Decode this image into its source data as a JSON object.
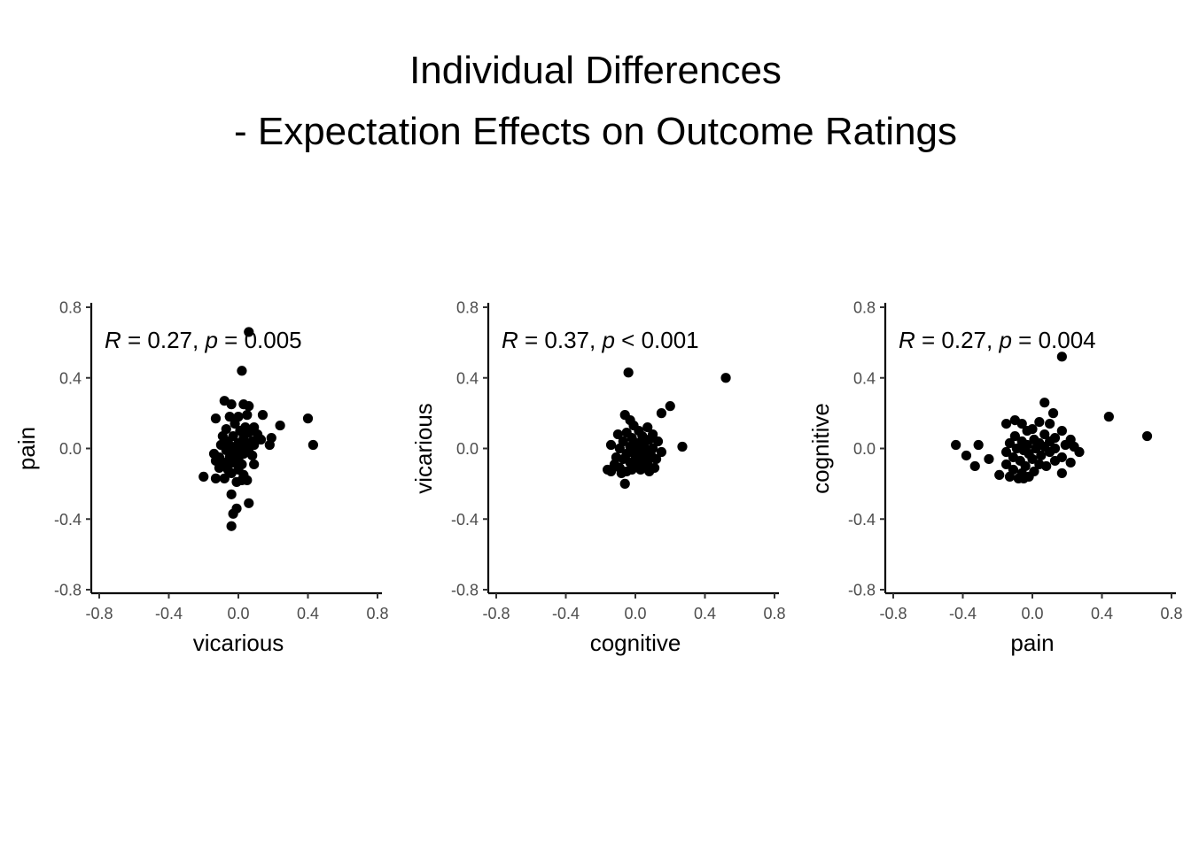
{
  "title": {
    "line1": "Individual Differences",
    "line2": "- Expectation Effects on Outcome Ratings"
  },
  "point_color": "#000000",
  "chart_data": [
    {
      "type": "scatter",
      "xlabel": "vicarious",
      "ylabel": "pain",
      "xlim": [
        -0.8,
        0.8
      ],
      "ylim": [
        -0.8,
        0.8
      ],
      "xticks": [
        "-0.8",
        "-0.4",
        "0.0",
        "0.4",
        "0.8"
      ],
      "yticks": [
        "-0.8",
        "-0.4",
        "0.0",
        "0.4",
        "0.8"
      ],
      "annotation": {
        "r_label": "R",
        "r_text": " = 0.27, ",
        "p_label": "p",
        "p_text": " = 0.005"
      },
      "points": [
        [
          0.06,
          0.66
        ],
        [
          0.02,
          0.44
        ],
        [
          -0.08,
          0.27
        ],
        [
          -0.04,
          0.25
        ],
        [
          0.03,
          0.25
        ],
        [
          0.06,
          0.24
        ],
        [
          -0.13,
          0.17
        ],
        [
          -0.05,
          0.18
        ],
        [
          0.0,
          0.18
        ],
        [
          0.05,
          0.19
        ],
        [
          0.14,
          0.19
        ],
        [
          0.24,
          0.13
        ],
        [
          0.4,
          0.17
        ],
        [
          0.43,
          0.02
        ],
        [
          -0.02,
          0.14
        ],
        [
          0.04,
          0.12
        ],
        [
          0.09,
          0.12
        ],
        [
          -0.07,
          0.11
        ],
        [
          0.01,
          0.1
        ],
        [
          0.06,
          0.09
        ],
        [
          0.11,
          0.08
        ],
        [
          -0.09,
          0.07
        ],
        [
          -0.03,
          0.07
        ],
        [
          0.03,
          0.06
        ],
        [
          0.19,
          0.06
        ],
        [
          0.13,
          0.05
        ],
        [
          0.08,
          0.04
        ],
        [
          -0.06,
          0.04
        ],
        [
          0.0,
          0.03
        ],
        [
          -0.1,
          0.02
        ],
        [
          0.04,
          0.02
        ],
        [
          0.09,
          0.02
        ],
        [
          0.18,
          0.02
        ],
        [
          -0.04,
          0.01
        ],
        [
          0.02,
          0.0
        ],
        [
          -0.07,
          -0.01
        ],
        [
          0.06,
          -0.02
        ],
        [
          -0.14,
          -0.03
        ],
        [
          -0.02,
          -0.02
        ],
        [
          0.03,
          -0.03
        ],
        [
          -0.11,
          -0.05
        ],
        [
          -0.05,
          -0.05
        ],
        [
          0.0,
          -0.06
        ],
        [
          0.08,
          -0.04
        ],
        [
          -0.13,
          -0.07
        ],
        [
          -0.08,
          -0.08
        ],
        [
          -0.03,
          -0.08
        ],
        [
          0.02,
          -0.09
        ],
        [
          0.09,
          -0.09
        ],
        [
          -0.11,
          -0.11
        ],
        [
          -0.06,
          -0.12
        ],
        [
          0.0,
          -0.12
        ],
        [
          -0.04,
          -0.14
        ],
        [
          0.03,
          -0.15
        ],
        [
          -0.2,
          -0.16
        ],
        [
          -0.13,
          -0.17
        ],
        [
          -0.08,
          -0.17
        ],
        [
          0.02,
          -0.18
        ],
        [
          -0.01,
          -0.19
        ],
        [
          -0.04,
          -0.26
        ],
        [
          0.06,
          -0.31
        ],
        [
          -0.01,
          -0.34
        ],
        [
          -0.03,
          -0.37
        ],
        [
          -0.04,
          -0.44
        ],
        [
          0.05,
          -0.18
        ]
      ]
    },
    {
      "type": "scatter",
      "xlabel": "cognitive",
      "ylabel": "vicarious",
      "xlim": [
        -0.8,
        0.8
      ],
      "ylim": [
        -0.8,
        0.8
      ],
      "xticks": [
        "-0.8",
        "-0.4",
        "0.0",
        "0.4",
        "0.8"
      ],
      "yticks": [
        "-0.8",
        "-0.4",
        "0.0",
        "0.4",
        "0.8"
      ],
      "annotation": {
        "r_label": "R",
        "r_text": " = 0.37, ",
        "p_label": "p",
        "p_text": " < 0.001"
      },
      "points": [
        [
          -0.04,
          0.43
        ],
        [
          0.52,
          0.4
        ],
        [
          0.2,
          0.24
        ],
        [
          0.15,
          0.2
        ],
        [
          -0.06,
          0.19
        ],
        [
          -0.03,
          0.16
        ],
        [
          0.07,
          0.12
        ],
        [
          0.02,
          0.1
        ],
        [
          -0.05,
          0.09
        ],
        [
          0.1,
          0.08
        ],
        [
          -0.1,
          0.08
        ],
        [
          0.04,
          0.07
        ],
        [
          -0.02,
          0.06
        ],
        [
          0.08,
          0.05
        ],
        [
          0.13,
          0.04
        ],
        [
          -0.07,
          0.04
        ],
        [
          0.01,
          0.03
        ],
        [
          0.05,
          0.02
        ],
        [
          -0.14,
          0.02
        ],
        [
          0.27,
          0.01
        ],
        [
          -0.03,
          0.01
        ],
        [
          0.1,
          0.0
        ],
        [
          0.03,
          0.0
        ],
        [
          -0.09,
          0.0
        ],
        [
          0.06,
          -0.01
        ],
        [
          -0.01,
          -0.02
        ],
        [
          0.15,
          -0.02
        ],
        [
          -0.05,
          -0.03
        ],
        [
          0.0,
          -0.04
        ],
        [
          0.09,
          -0.04
        ],
        [
          -0.11,
          -0.05
        ],
        [
          0.04,
          -0.05
        ],
        [
          -0.07,
          -0.06
        ],
        [
          0.12,
          -0.06
        ],
        [
          0.02,
          -0.07
        ],
        [
          -0.03,
          -0.08
        ],
        [
          0.07,
          -0.08
        ],
        [
          -0.12,
          -0.09
        ],
        [
          0.0,
          -0.1
        ],
        [
          0.05,
          -0.1
        ],
        [
          -0.09,
          -0.11
        ],
        [
          0.11,
          -0.11
        ],
        [
          -0.16,
          -0.12
        ],
        [
          0.03,
          -0.12
        ],
        [
          -0.05,
          -0.13
        ],
        [
          0.08,
          -0.13
        ],
        [
          -0.14,
          -0.13
        ],
        [
          -0.08,
          -0.14
        ],
        [
          -0.06,
          -0.2
        ],
        [
          -0.01,
          0.13
        ],
        [
          0.06,
          -0.03
        ],
        [
          -0.02,
          -0.12
        ]
      ]
    },
    {
      "type": "scatter",
      "xlabel": "pain",
      "ylabel": "cognitive",
      "xlim": [
        -0.8,
        0.8
      ],
      "ylim": [
        -0.8,
        0.8
      ],
      "xticks": [
        "-0.8",
        "-0.4",
        "0.0",
        "0.4",
        "0.8"
      ],
      "yticks": [
        "-0.8",
        "-0.4",
        "0.0",
        "0.4",
        "0.8"
      ],
      "annotation": {
        "r_label": "R",
        "r_text": " = 0.27, ",
        "p_label": "p",
        "p_text": " = 0.004"
      },
      "points": [
        [
          0.17,
          0.52
        ],
        [
          0.44,
          0.18
        ],
        [
          0.66,
          0.07
        ],
        [
          0.07,
          0.26
        ],
        [
          0.12,
          0.2
        ],
        [
          -0.1,
          0.16
        ],
        [
          -0.06,
          0.14
        ],
        [
          0.04,
          0.15
        ],
        [
          -0.15,
          0.14
        ],
        [
          0.1,
          0.14
        ],
        [
          0.0,
          0.11
        ],
        [
          0.17,
          0.1
        ],
        [
          -0.03,
          0.1
        ],
        [
          0.07,
          0.08
        ],
        [
          -0.1,
          0.07
        ],
        [
          0.13,
          0.06
        ],
        [
          0.22,
          0.05
        ],
        [
          0.01,
          0.05
        ],
        [
          -0.06,
          0.04
        ],
        [
          0.1,
          0.04
        ],
        [
          0.04,
          0.03
        ],
        [
          -0.13,
          0.03
        ],
        [
          0.19,
          0.02
        ],
        [
          -0.03,
          0.02
        ],
        [
          0.07,
          0.01
        ],
        [
          -0.44,
          0.02
        ],
        [
          -0.31,
          0.02
        ],
        [
          0.24,
          0.01
        ],
        [
          -0.09,
          0.0
        ],
        [
          0.02,
          0.0
        ],
        [
          0.13,
          0.0
        ],
        [
          -0.05,
          -0.01
        ],
        [
          -0.15,
          -0.02
        ],
        [
          0.1,
          -0.02
        ],
        [
          0.27,
          -0.02
        ],
        [
          -0.02,
          -0.03
        ],
        [
          -0.38,
          -0.04
        ],
        [
          0.05,
          -0.04
        ],
        [
          -0.11,
          -0.05
        ],
        [
          0.17,
          -0.05
        ],
        [
          -0.25,
          -0.06
        ],
        [
          0.0,
          -0.06
        ],
        [
          -0.07,
          -0.07
        ],
        [
          0.13,
          -0.07
        ],
        [
          0.22,
          -0.08
        ],
        [
          -0.15,
          -0.09
        ],
        [
          0.04,
          -0.09
        ],
        [
          -0.04,
          -0.1
        ],
        [
          -0.33,
          -0.1
        ],
        [
          0.08,
          -0.1
        ],
        [
          -0.11,
          -0.12
        ],
        [
          0.01,
          -0.13
        ],
        [
          0.17,
          -0.14
        ],
        [
          -0.06,
          -0.14
        ],
        [
          -0.19,
          -0.15
        ],
        [
          -0.13,
          -0.16
        ],
        [
          -0.02,
          -0.16
        ],
        [
          -0.08,
          -0.17
        ],
        [
          -0.05,
          -0.17
        ]
      ]
    }
  ]
}
